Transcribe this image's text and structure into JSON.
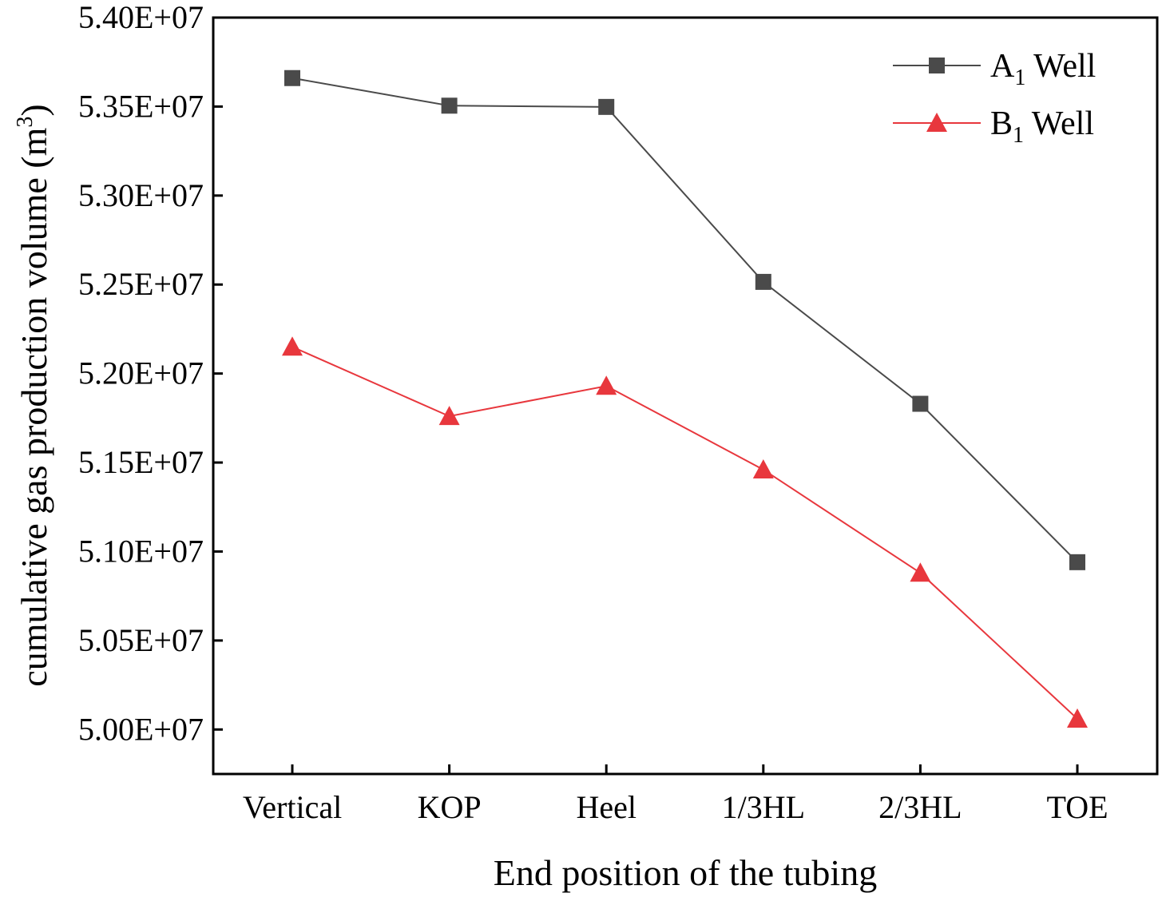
{
  "chart_data": {
    "type": "line",
    "title": "",
    "xlabel": "End position of the tubing",
    "ylabel": {
      "main": "cumulative gas production volume (m",
      "sup": "3",
      "close": ")"
    },
    "categories": [
      "Vertical",
      "KOP",
      "Heel",
      "1/3HL",
      "2/3HL",
      "TOE"
    ],
    "ylim": [
      49750000,
      54000000
    ],
    "yticks": [
      50000000,
      50500000,
      51000000,
      51500000,
      52000000,
      52500000,
      53000000,
      53500000,
      54000000
    ],
    "ytick_labels": [
      "5.00E+07",
      "5.05E+07",
      "5.10E+07",
      "5.15E+07",
      "5.20E+07",
      "5.25E+07",
      "5.30E+07",
      "5.35E+07",
      "5.40E+07"
    ],
    "grid": false,
    "legend_position": "top-right",
    "series": [
      {
        "name": "A1 Well",
        "label_main": "A",
        "label_sub": "1",
        "label_rest": " Well",
        "marker": "square",
        "color": "#4a4a4a",
        "values": [
          53660000,
          53505000,
          53498000,
          52515000,
          51830000,
          50940000
        ]
      },
      {
        "name": "B1 Well",
        "label_main": "B",
        "label_sub": "1",
        "label_rest": " Well",
        "marker": "triangle",
        "color": "#e8373d",
        "values": [
          52150000,
          51760000,
          51930000,
          51460000,
          50880000,
          50060000
        ]
      }
    ]
  }
}
